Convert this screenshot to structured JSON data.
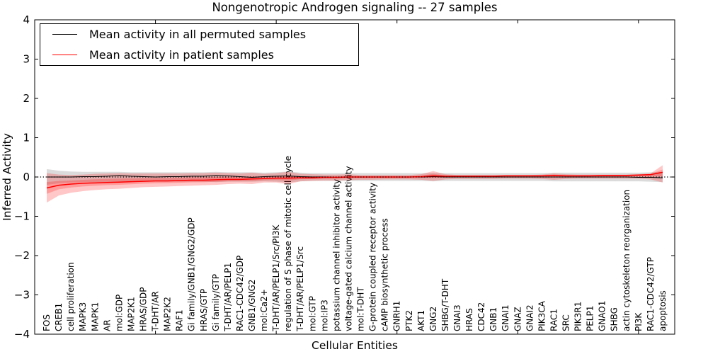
{
  "chart_data": {
    "type": "line",
    "title": "Nongenotropic Androgen signaling -- 27 samples",
    "xlabel": "Cellular Entities",
    "ylabel": "Inferred Activity",
    "ylim": [
      -4,
      4
    ],
    "xlim": [
      0,
      53
    ],
    "yticks": [
      -4,
      -3,
      -2,
      -1,
      0,
      1,
      2,
      3,
      4
    ],
    "xticks": [
      10,
      20,
      30,
      40,
      50
    ],
    "grid": false,
    "legend_position": "upper left",
    "zero_line": {
      "style": "dotted",
      "color": "#000000",
      "y": 0
    },
    "categories": [
      "FOS",
      "CREB1",
      "cell proliferation",
      "MAPK3",
      "MAPK1",
      "AR",
      "mol:GDP",
      "MAP2K1",
      "HRAS/GDP",
      "T-DHT/AR",
      "MAP2K2",
      "RAF1",
      "Gi family/GNB1/GNG2/GDP",
      "HRAS/GTP",
      "Gi family/GTP",
      "T-DHT/AR/PELP1",
      "RAC1-CDC42/GDP",
      "GNB1/GNG2",
      "mol:Ca2+",
      "T-DHT/AR/PELP1/Src/PI3K",
      "regulation of S phase of mitotic cell cycle",
      "T-DHT/AR/PELP1/Src",
      "mol:GTP",
      "mol:IP3",
      "potassium channel inhibitor activity",
      "voltage-gated calcium channel activity",
      "mol:T-DHT",
      "G-protein coupled receptor activity",
      "cAMP biosynthetic process",
      "GNRH1",
      "PTK2",
      "AKT1",
      "GNG2",
      "SHBG/T-DHT",
      "GNAI3",
      "HRAS",
      "CDC42",
      "GNB1",
      "GNAI1",
      "GNAZ",
      "GNAI2",
      "PIK3CA",
      "RAC1",
      "SRC",
      "PIK3R1",
      "PELP1",
      "GNAO1",
      "SHBG",
      "actin cytoskeleton reorganization",
      "PI3K",
      "RAC1-CDC42/GTP",
      "apoptosis"
    ],
    "series": [
      {
        "name": "Mean activity in all permuted samples",
        "color": "#000000",
        "line_width": 1,
        "band_color": "#000000",
        "band_opacity": 0.14,
        "values": [
          0.0,
          0.0,
          0.0,
          0.01,
          0.01,
          0.02,
          0.04,
          0.02,
          0.01,
          0.0,
          0.01,
          0.01,
          0.02,
          0.02,
          0.04,
          0.03,
          0.01,
          -0.01,
          0.01,
          0.02,
          0.03,
          0.01,
          0.0,
          0.0,
          -0.01,
          0.0,
          0.0,
          0.0,
          0.0,
          0.0,
          0.0,
          0.0,
          0.01,
          0.0,
          0.0,
          0.0,
          0.0,
          0.0,
          0.0,
          0.0,
          0.0,
          0.0,
          0.0,
          0.0,
          0.0,
          0.0,
          0.0,
          0.0,
          0.0,
          -0.01,
          -0.01,
          -0.02
        ],
        "band_upper": [
          0.2,
          0.16,
          0.14,
          0.13,
          0.13,
          0.13,
          0.13,
          0.12,
          0.12,
          0.12,
          0.12,
          0.12,
          0.12,
          0.12,
          0.13,
          0.12,
          0.12,
          0.12,
          0.11,
          0.12,
          0.14,
          0.11,
          0.1,
          0.1,
          0.1,
          0.1,
          0.1,
          0.1,
          0.1,
          0.1,
          0.1,
          0.1,
          0.11,
          0.1,
          0.1,
          0.1,
          0.1,
          0.1,
          0.1,
          0.1,
          0.1,
          0.1,
          0.11,
          0.11,
          0.11,
          0.11,
          0.11,
          0.11,
          0.11,
          0.11,
          0.12,
          0.13
        ],
        "band_lower": [
          -0.2,
          -0.16,
          -0.14,
          -0.13,
          -0.13,
          -0.13,
          -0.13,
          -0.12,
          -0.12,
          -0.12,
          -0.12,
          -0.12,
          -0.12,
          -0.12,
          -0.13,
          -0.12,
          -0.12,
          -0.12,
          -0.11,
          -0.12,
          -0.14,
          -0.11,
          -0.1,
          -0.1,
          -0.1,
          -0.1,
          -0.1,
          -0.1,
          -0.1,
          -0.1,
          -0.1,
          -0.1,
          -0.11,
          -0.1,
          -0.1,
          -0.1,
          -0.1,
          -0.1,
          -0.1,
          -0.1,
          -0.1,
          -0.1,
          -0.11,
          -0.11,
          -0.11,
          -0.11,
          -0.11,
          -0.11,
          -0.11,
          -0.11,
          -0.12,
          -0.13
        ]
      },
      {
        "name": "Mean activity in patient samples",
        "color": "#ff0000",
        "line_width": 1.5,
        "band_color": "#ff0000",
        "band_opacity": 0.22,
        "values": [
          -0.28,
          -0.21,
          -0.18,
          -0.16,
          -0.15,
          -0.14,
          -0.13,
          -0.12,
          -0.11,
          -0.1,
          -0.1,
          -0.09,
          -0.08,
          -0.08,
          -0.07,
          -0.06,
          -0.06,
          -0.05,
          -0.04,
          -0.03,
          -0.03,
          -0.02,
          -0.02,
          -0.01,
          -0.01,
          0.0,
          0.0,
          0.0,
          0.0,
          0.0,
          0.0,
          0.01,
          0.03,
          0.02,
          0.02,
          0.02,
          0.02,
          0.02,
          0.03,
          0.03,
          0.03,
          0.03,
          0.04,
          0.03,
          0.03,
          0.03,
          0.04,
          0.04,
          0.04,
          0.05,
          0.06,
          0.12
        ],
        "band_upper": [
          0.1,
          0.06,
          0.05,
          0.06,
          0.08,
          0.09,
          0.1,
          0.09,
          0.09,
          0.09,
          0.09,
          0.09,
          0.1,
          0.1,
          0.11,
          0.1,
          0.09,
          0.11,
          0.08,
          0.1,
          0.13,
          0.08,
          0.07,
          0.06,
          0.06,
          0.07,
          0.05,
          0.05,
          0.05,
          0.05,
          0.05,
          0.07,
          0.15,
          0.07,
          0.05,
          0.05,
          0.05,
          0.05,
          0.05,
          0.05,
          0.05,
          0.06,
          0.09,
          0.07,
          0.06,
          0.06,
          0.06,
          0.06,
          0.06,
          0.07,
          0.09,
          0.3
        ],
        "band_lower": [
          -0.65,
          -0.47,
          -0.4,
          -0.36,
          -0.33,
          -0.31,
          -0.3,
          -0.28,
          -0.26,
          -0.25,
          -0.24,
          -0.23,
          -0.22,
          -0.21,
          -0.2,
          -0.18,
          -0.17,
          -0.18,
          -0.14,
          -0.14,
          -0.18,
          -0.11,
          -0.1,
          -0.09,
          -0.09,
          -0.08,
          -0.07,
          -0.07,
          -0.06,
          -0.06,
          -0.06,
          -0.07,
          -0.1,
          -0.06,
          -0.05,
          -0.05,
          -0.05,
          -0.05,
          -0.04,
          -0.04,
          -0.04,
          -0.05,
          -0.07,
          -0.05,
          -0.04,
          -0.04,
          -0.04,
          -0.04,
          -0.04,
          -0.04,
          -0.06,
          -0.14
        ]
      }
    ]
  }
}
